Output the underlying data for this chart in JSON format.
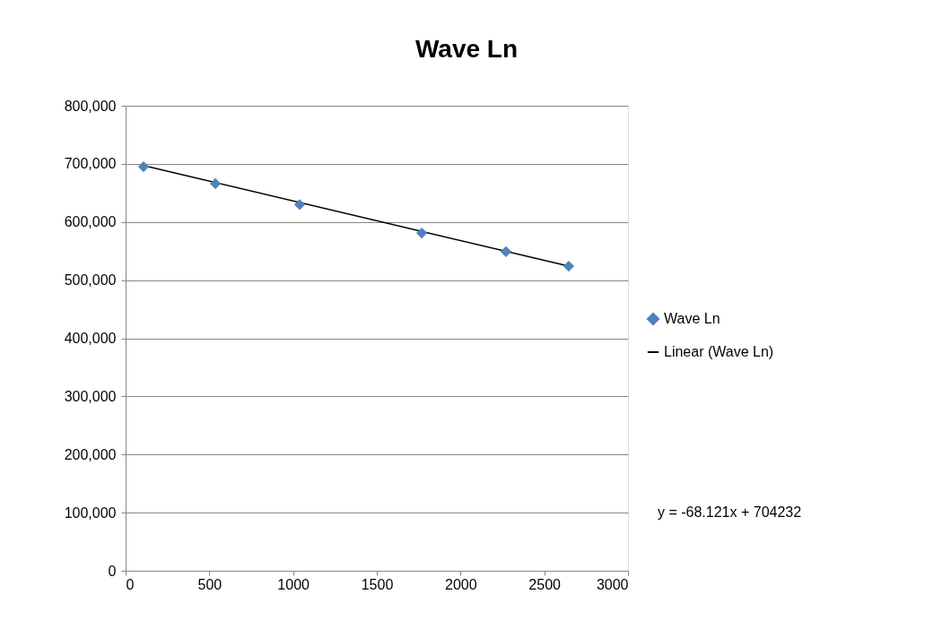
{
  "chart_data": {
    "type": "scatter",
    "title": "Wave Ln",
    "x": [
      107,
      536,
      1039,
      1768,
      2271,
      2646
    ],
    "series": [
      {
        "name": "Wave Ln",
        "color": "#4f81bd",
        "marker": "diamond",
        "values": [
          695000,
          666000,
          630000,
          581000,
          549000,
          524000
        ]
      },
      {
        "name": "Linear (Wave Ln)",
        "type": "line",
        "color": "#000000",
        "line_style": "solid",
        "x": [
          107,
          2646
        ],
        "values": [
          697000,
          524000
        ]
      }
    ],
    "xlim": [
      0,
      3000
    ],
    "xticks": [
      0,
      500,
      1000,
      1500,
      2000,
      2500,
      3000
    ],
    "ylim": [
      0,
      800000
    ],
    "yticks": [
      {
        "value": 0,
        "label": "0"
      },
      {
        "value": 100000,
        "label": "100,000"
      },
      {
        "value": 200000,
        "label": "200,000"
      },
      {
        "value": 300000,
        "label": "300,000"
      },
      {
        "value": 400000,
        "label": "400,000"
      },
      {
        "value": 500000,
        "label": "500,000"
      },
      {
        "value": 600000,
        "label": "600,000"
      },
      {
        "value": 700000,
        "label": "700,000"
      },
      {
        "value": 800000,
        "label": "800,000"
      }
    ],
    "grid": "y",
    "legend": "right",
    "annotations": [
      "y = -68.121x + 704232"
    ]
  }
}
